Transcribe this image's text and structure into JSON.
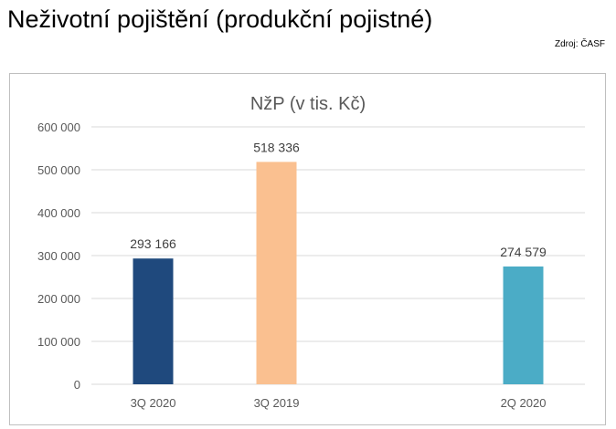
{
  "header": {
    "title": "Neživotní pojištění (produkční pojistné)",
    "source": "Zdroj: ČASF"
  },
  "chart_data": {
    "type": "bar",
    "title": "NžP (v tis. Kč)",
    "categories": [
      "3Q 2020",
      "3Q 2019",
      "",
      "2Q 2020"
    ],
    "values": [
      293166,
      518336,
      null,
      274579
    ],
    "value_labels": [
      "293 166",
      "518 336",
      "",
      "274 579"
    ],
    "bar_colors": [
      "#1f497d",
      "#fac090",
      "#ffffff",
      "#4bacc6"
    ],
    "ylim": [
      0,
      600000
    ],
    "yticks": [
      0,
      100000,
      200000,
      300000,
      400000,
      500000,
      600000
    ],
    "ytick_labels": [
      "0",
      "100 000",
      "200 000",
      "300 000",
      "400 000",
      "500 000",
      "600 000"
    ],
    "xlabel": "",
    "ylabel": "",
    "grid": true,
    "legend": "none"
  }
}
